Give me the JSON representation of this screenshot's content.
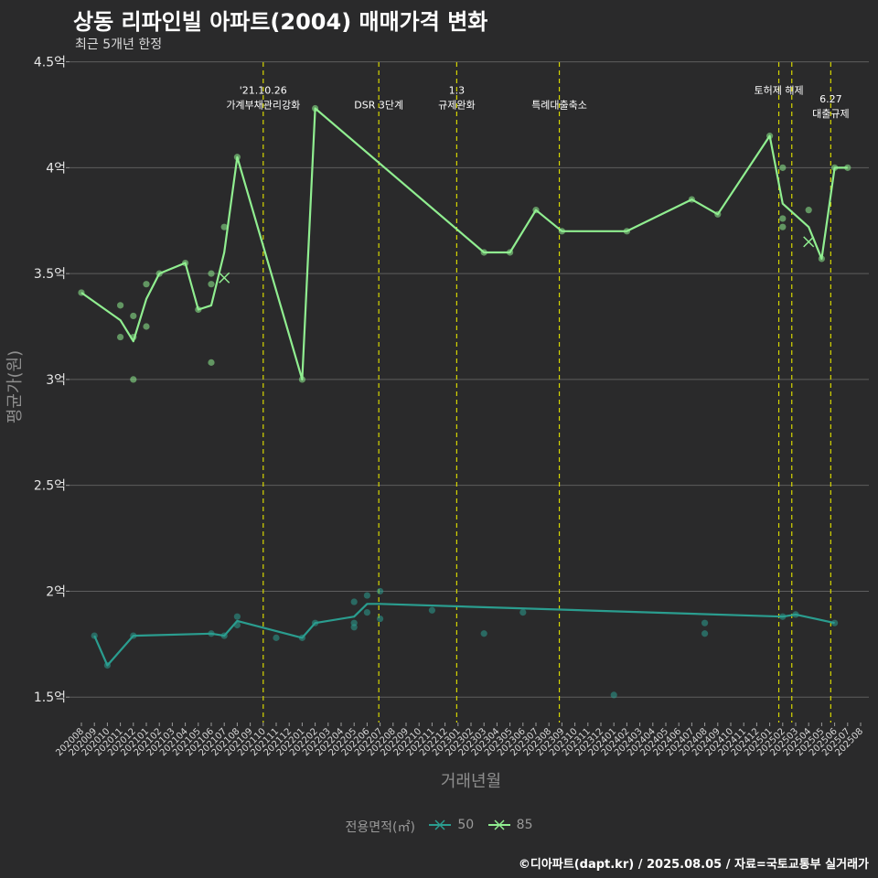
{
  "title": "상동 리파인빌 아파트(2004) 매매가격 변화",
  "subtitle": "최근 5개년 한정",
  "caption": "©디아파트(dapt.kr) / 2025.08.05 / 자료=국토교통부 실거래가",
  "colors": {
    "background": "#2a2a2b",
    "grid": "#5e5e5e",
    "event_line": "#d7d700",
    "series_50": "#2a9d8f",
    "series_85": "#90ee90"
  },
  "chart_data": {
    "type": "line",
    "title": "상동 리파인빌 아파트(2004) 매매가격 변화",
    "subtitle": "최근 5개년 한정",
    "xlabel": "거래년월",
    "ylabel": "평균가(원)",
    "ylim": [
      1.38,
      4.55
    ],
    "yticks": [
      1.5,
      2,
      2.5,
      3,
      3.5,
      4,
      4.5
    ],
    "ytick_labels": [
      "1.5억",
      "2억",
      "2.5억",
      "3억",
      "3.5억",
      "4억",
      "4.5억"
    ],
    "x_labels": [
      "202008",
      "202009",
      "202010",
      "202011",
      "202012",
      "202101",
      "202102",
      "202103",
      "202104",
      "202105",
      "202106",
      "202107",
      "202108",
      "202109",
      "202110",
      "202111",
      "202112",
      "202201",
      "202202",
      "202203",
      "202204",
      "202205",
      "202206",
      "202207",
      "202208",
      "202209",
      "202210",
      "202211",
      "202212",
      "202301",
      "202302",
      "202303",
      "202304",
      "202305",
      "202306",
      "202307",
      "202308",
      "202309",
      "202310",
      "202311",
      "202312",
      "202401",
      "202402",
      "202403",
      "202404",
      "202405",
      "202406",
      "202407",
      "202408",
      "202409",
      "202410",
      "202411",
      "202412",
      "202501",
      "202502",
      "202503",
      "202504",
      "202505",
      "202506",
      "202507",
      "202508"
    ],
    "grid": true,
    "legend": {
      "title": "전용면적(㎡)",
      "position": "bottom",
      "entries": [
        "50",
        "85"
      ]
    },
    "events": [
      {
        "x": 14.0,
        "lines": [
          "'21.10.26",
          "가계부채관리강화"
        ],
        "label_y": 4.28
      },
      {
        "x": 22.9,
        "lines": [
          "DSR 3단계"
        ],
        "label_y": 4.28
      },
      {
        "x": 28.9,
        "lines": [
          "1.3",
          "규제완화"
        ],
        "label_y": 4.28
      },
      {
        "x": 36.8,
        "lines": [
          "특례대출축소"
        ],
        "label_y": 4.28
      },
      {
        "x": 53.7,
        "lines": [
          "토허제 해제"
        ],
        "label_y": 4.35
      },
      {
        "x": 54.7,
        "lines": [],
        "label_y": 4.35
      },
      {
        "x": 57.7,
        "lines": [
          "6.27",
          "대출규제"
        ],
        "label_y": 4.24
      }
    ],
    "series": [
      {
        "name": "50",
        "line": [
          [
            1,
            1.79
          ],
          [
            2,
            1.65
          ],
          [
            4,
            1.79
          ],
          [
            10,
            1.8
          ],
          [
            11,
            1.79
          ],
          [
            12,
            1.86
          ],
          [
            17,
            1.78
          ],
          [
            18,
            1.85
          ],
          [
            21,
            1.88
          ],
          [
            22,
            1.94
          ],
          [
            23,
            1.94
          ],
          [
            54,
            1.88
          ],
          [
            55,
            1.89
          ],
          [
            58,
            1.85
          ]
        ],
        "points": [
          [
            1,
            1.79
          ],
          [
            2,
            1.65
          ],
          [
            4,
            1.79
          ],
          [
            10,
            1.8
          ],
          [
            11,
            1.79
          ],
          [
            12,
            1.88
          ],
          [
            12,
            1.84
          ],
          [
            15,
            1.78
          ],
          [
            17,
            1.78
          ],
          [
            18,
            1.85
          ],
          [
            21,
            1.95
          ],
          [
            21,
            1.85
          ],
          [
            21,
            1.83
          ],
          [
            22,
            1.98
          ],
          [
            22,
            1.9
          ],
          [
            23,
            2.0
          ],
          [
            23,
            1.87
          ],
          [
            27,
            1.91
          ],
          [
            31,
            1.8
          ],
          [
            34,
            1.9
          ],
          [
            41,
            1.51
          ],
          [
            48,
            1.85
          ],
          [
            48,
            1.8
          ],
          [
            54,
            1.88
          ],
          [
            55,
            1.89
          ],
          [
            58,
            1.85
          ]
        ],
        "marker_points": []
      },
      {
        "name": "85",
        "line": [
          [
            0,
            3.41
          ],
          [
            3,
            3.28
          ],
          [
            4,
            3.18
          ],
          [
            5,
            3.38
          ],
          [
            6,
            3.5
          ],
          [
            8,
            3.55
          ],
          [
            9,
            3.33
          ],
          [
            10,
            3.35
          ],
          [
            11,
            3.6
          ],
          [
            12,
            4.05
          ],
          [
            17,
            3.0
          ],
          [
            18,
            4.28
          ],
          [
            31,
            3.6
          ],
          [
            33,
            3.6
          ],
          [
            35,
            3.8
          ],
          [
            37,
            3.7
          ],
          [
            42,
            3.7
          ],
          [
            47,
            3.85
          ],
          [
            49,
            3.78
          ],
          [
            53,
            4.15
          ],
          [
            54,
            3.83
          ],
          [
            56,
            3.72
          ],
          [
            57,
            3.57
          ],
          [
            58,
            4.0
          ],
          [
            59,
            4.0
          ]
        ],
        "points": [
          [
            0,
            3.41
          ],
          [
            3,
            3.35
          ],
          [
            3,
            3.2
          ],
          [
            4,
            3.3
          ],
          [
            4,
            3.2
          ],
          [
            4,
            3.0
          ],
          [
            5,
            3.45
          ],
          [
            5,
            3.25
          ],
          [
            6,
            3.5
          ],
          [
            8,
            3.55
          ],
          [
            9,
            3.33
          ],
          [
            10,
            3.5
          ],
          [
            10,
            3.45
          ],
          [
            10,
            3.08
          ],
          [
            11,
            3.72
          ],
          [
            12,
            4.05
          ],
          [
            17,
            3.0
          ],
          [
            18,
            4.28
          ],
          [
            31,
            3.6
          ],
          [
            33,
            3.6
          ],
          [
            35,
            3.8
          ],
          [
            37,
            3.7
          ],
          [
            42,
            3.7
          ],
          [
            47,
            3.85
          ],
          [
            49,
            3.78
          ],
          [
            53,
            4.15
          ],
          [
            54,
            4.0
          ],
          [
            54,
            3.76
          ],
          [
            54,
            3.72
          ],
          [
            56,
            3.8
          ],
          [
            57,
            3.57
          ],
          [
            58,
            4.0
          ],
          [
            59,
            4.0
          ]
        ],
        "marker_points": [
          [
            11,
            3.48
          ],
          [
            56,
            3.65
          ]
        ]
      }
    ]
  }
}
